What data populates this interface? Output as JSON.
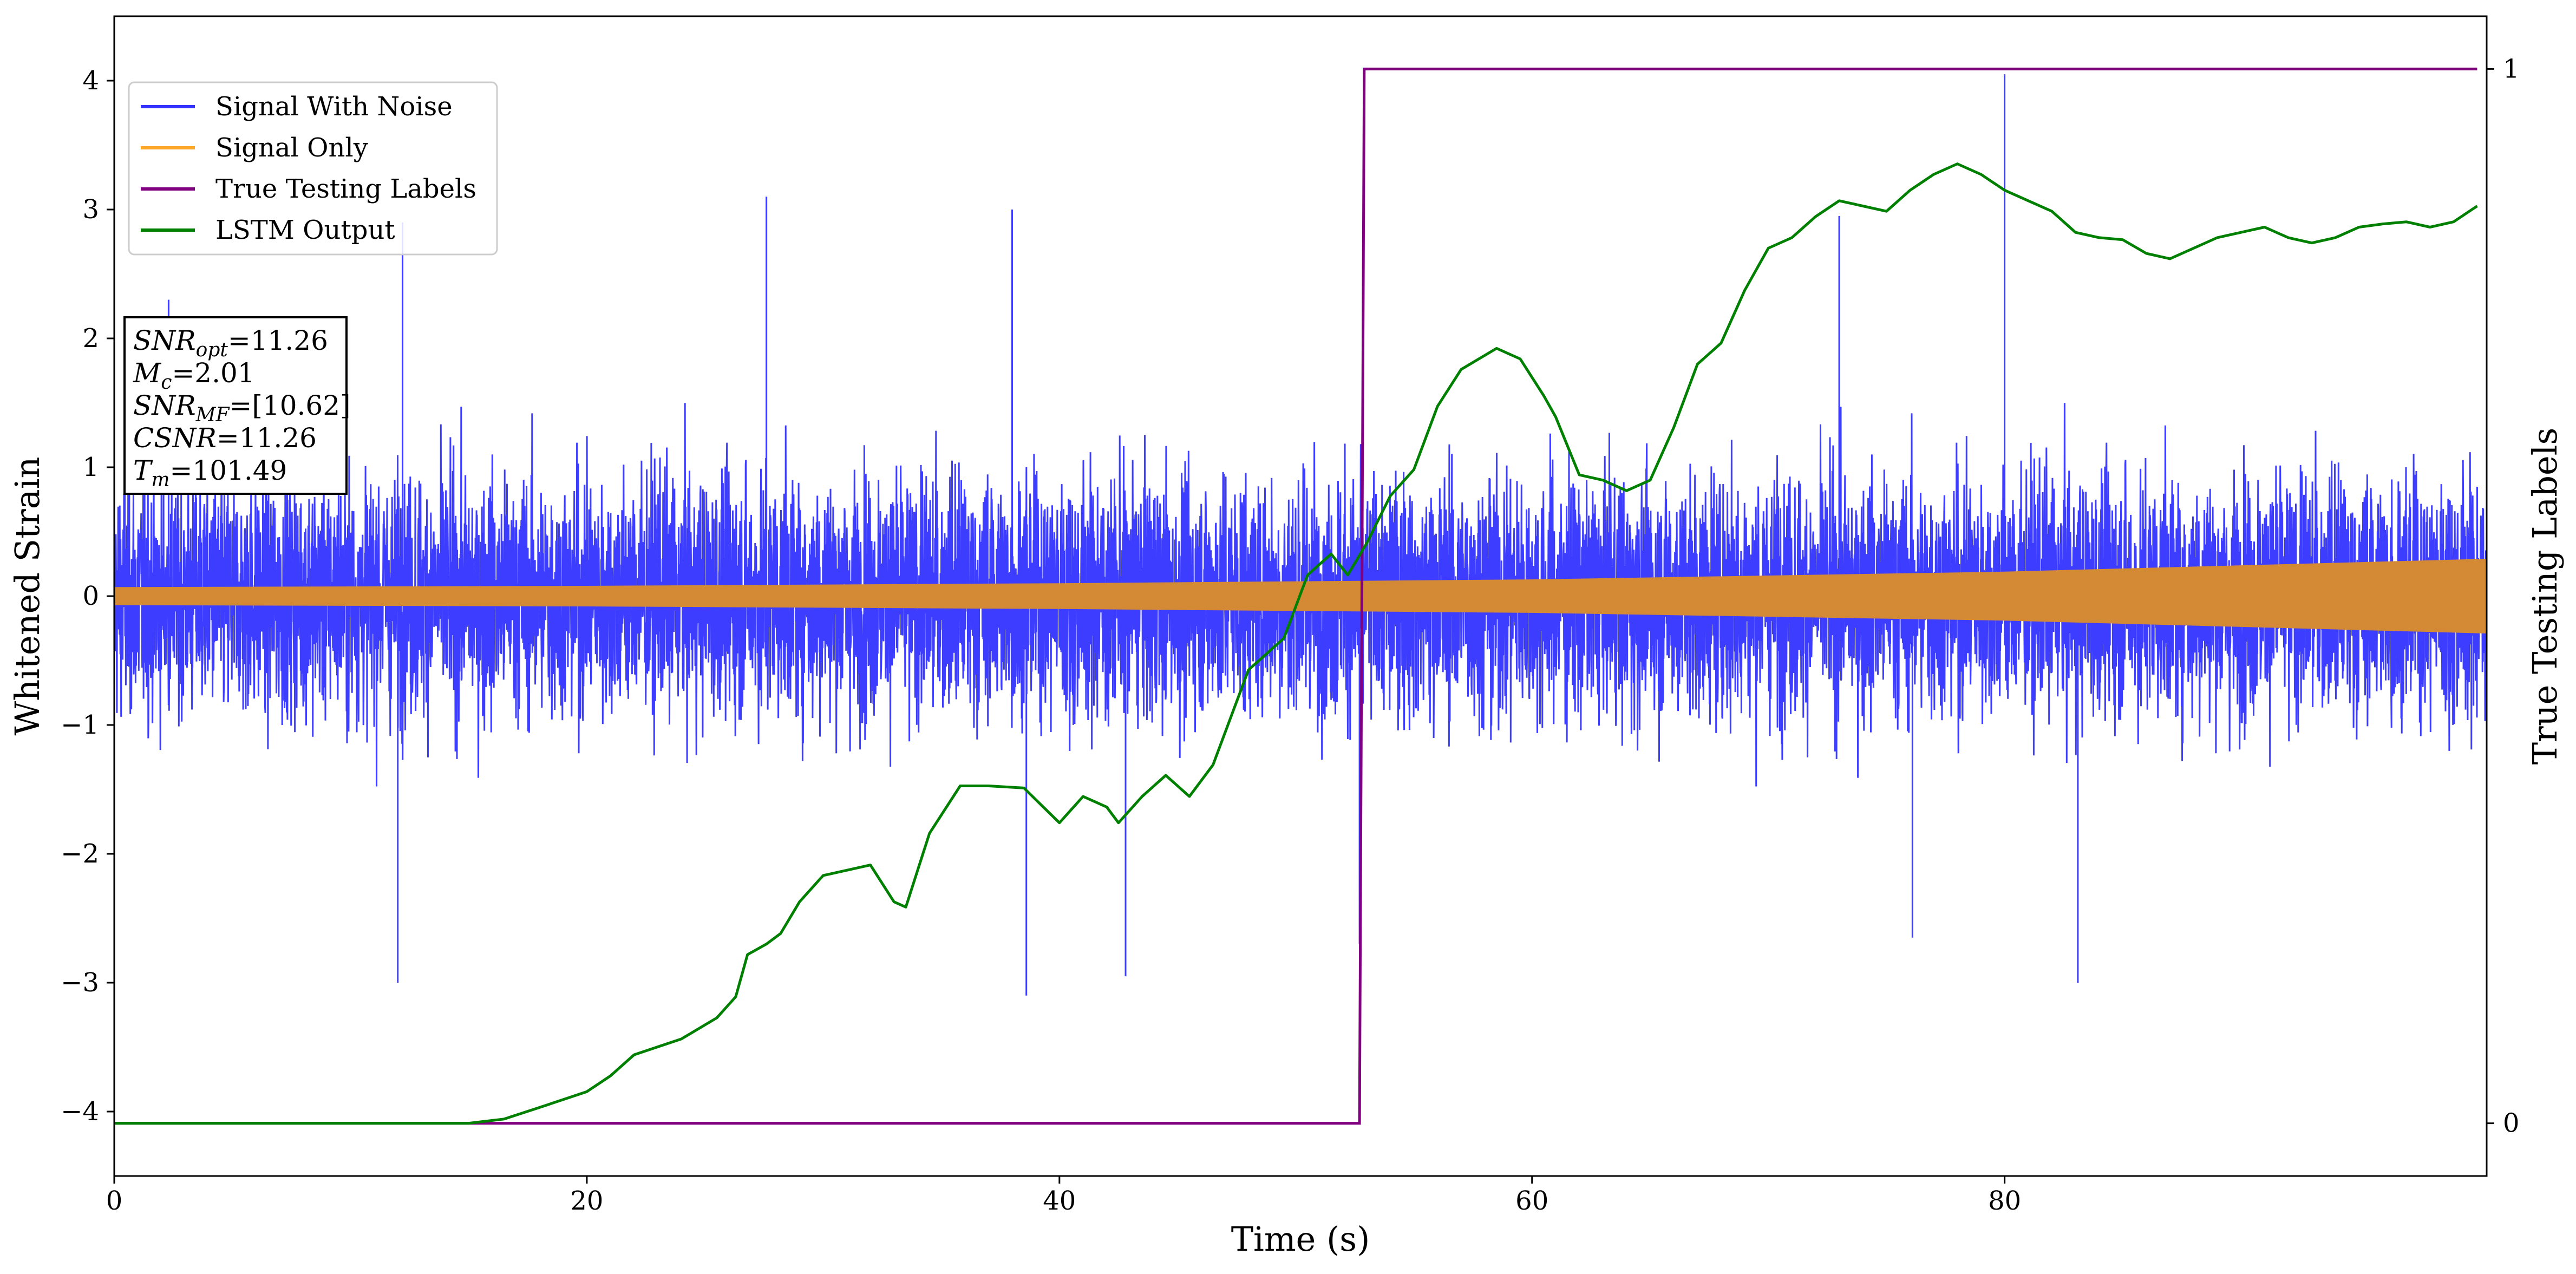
{
  "chart_data": {
    "type": "line",
    "title": "",
    "xlabel": "Time (s)",
    "ylabel": "Whitened Strain",
    "ylabel_right": "True Testing Labels",
    "xlim": [
      0,
      100.4
    ],
    "ylim": [
      -4.5,
      4.5
    ],
    "ylim_right": [
      -0.05,
      1.05
    ],
    "x_ticks": [
      0,
      20,
      40,
      60,
      80
    ],
    "x_tick_labels": [
      "0",
      "20",
      "40",
      "60",
      "80"
    ],
    "y_ticks": [
      -4,
      -3,
      -2,
      -1,
      0,
      1,
      2,
      3,
      4
    ],
    "y_tick_labels": [
      "−4",
      "−3",
      "−2",
      "−1",
      "0",
      "1",
      "2",
      "3",
      "4"
    ],
    "y_right_ticks": [
      0,
      1
    ],
    "y_right_tick_labels": [
      "0",
      "1"
    ],
    "grid": false,
    "legend_position": "upper-left",
    "legend": [
      {
        "label": "Signal With Noise",
        "color": "#3333ff"
      },
      {
        "label": "Signal Only",
        "color": "#ffa726"
      },
      {
        "label": "True Testing Labels",
        "color": "#800080"
      },
      {
        "label": "LSTM Output",
        "color": "#008000"
      }
    ],
    "series": [
      {
        "name": "Signal With Noise",
        "axis": "left",
        "color": "#3333ff",
        "rendering": "dense noise band",
        "typical_amplitude": 1.45,
        "peaks": [
          {
            "x": 2.3,
            "y": 2.3
          },
          {
            "x": 12.2,
            "y": 2.9
          },
          {
            "x": 27.6,
            "y": 3.1
          },
          {
            "x": 38.0,
            "y": 3.0
          },
          {
            "x": 80.0,
            "y": 4.05
          },
          {
            "x": 73.0,
            "y": 2.95
          },
          {
            "x": 12.0,
            "y": -3.0
          },
          {
            "x": 38.6,
            "y": -3.1
          },
          {
            "x": 42.8,
            "y": -2.95
          },
          {
            "x": 52.7,
            "y": -2.7
          },
          {
            "x": 83.1,
            "y": -3.0
          },
          {
            "x": 76.1,
            "y": -2.65
          }
        ]
      },
      {
        "name": "Signal Only",
        "axis": "left",
        "color": "#d48a35",
        "rendering": "chirp envelope",
        "envelope_x": [
          0,
          20,
          40,
          60,
          80,
          100.4
        ],
        "envelope_y": [
          0.07,
          0.08,
          0.1,
          0.13,
          0.19,
          0.29
        ]
      },
      {
        "name": "True Testing Labels",
        "axis": "right",
        "color": "#800080",
        "x": [
          0,
          52.7,
          52.9,
          100.0
        ],
        "y": [
          0,
          0,
          1,
          1
        ]
      },
      {
        "name": "LSTM Output",
        "axis": "right",
        "color": "#008000",
        "x": [
          0,
          15,
          16.5,
          18,
          20,
          21,
          22,
          24,
          25.5,
          26.3,
          26.8,
          27.6,
          28.2,
          29,
          30,
          31,
          32,
          33,
          33.5,
          34.5,
          35.8,
          37,
          38.5,
          40,
          41,
          42,
          42.5,
          43.5,
          44.5,
          45.5,
          46.5,
          48,
          49.5,
          50.5,
          51.5,
          52.2,
          53,
          54,
          55,
          56,
          57,
          58.5,
          59.5,
          60.5,
          61,
          62,
          63,
          64,
          65,
          66,
          67,
          68,
          69,
          70,
          71,
          72,
          73,
          74,
          75,
          76,
          77,
          78,
          79,
          80,
          81,
          82,
          83,
          84,
          85,
          86,
          87,
          88,
          89,
          90,
          91,
          92,
          93,
          94,
          95,
          96,
          97,
          98,
          99,
          100
        ],
        "y": [
          0,
          0,
          0.004,
          0.015,
          0.03,
          0.045,
          0.065,
          0.08,
          0.1,
          0.12,
          0.16,
          0.17,
          0.18,
          0.21,
          0.235,
          0.24,
          0.245,
          0.21,
          0.205,
          0.275,
          0.32,
          0.32,
          0.318,
          0.285,
          0.31,
          0.3,
          0.285,
          0.31,
          0.33,
          0.31,
          0.34,
          0.43,
          0.46,
          0.52,
          0.54,
          0.52,
          0.55,
          0.595,
          0.62,
          0.68,
          0.715,
          0.735,
          0.725,
          0.69,
          0.67,
          0.615,
          0.61,
          0.6,
          0.61,
          0.66,
          0.72,
          0.74,
          0.79,
          0.83,
          0.84,
          0.86,
          0.875,
          0.87,
          0.865,
          0.885,
          0.9,
          0.91,
          0.9,
          0.885,
          0.875,
          0.865,
          0.845,
          0.84,
          0.838,
          0.825,
          0.82,
          0.83,
          0.84,
          0.845,
          0.85,
          0.84,
          0.835,
          0.84,
          0.85,
          0.853,
          0.855,
          0.85,
          0.855,
          0.87
        ]
      }
    ],
    "annotation_lines": [
      {
        "var": "SNR",
        "sub": "opt",
        "value": "=11.26"
      },
      {
        "var": "M",
        "sub": "c",
        "value": "=2.01"
      },
      {
        "var": "SNR",
        "sub": "MF",
        "value": "=[10.62]"
      },
      {
        "var": "CSNR",
        "sub": "",
        "value": "=11.26"
      },
      {
        "var": "T",
        "sub": "m",
        "value": "=101.49"
      }
    ]
  }
}
